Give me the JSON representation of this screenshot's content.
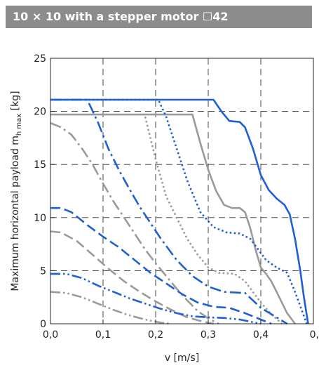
{
  "header": {
    "title": "10 × 10 with a stepper motor ☐42"
  },
  "chart_data": {
    "type": "line",
    "xlabel": "v [m/s]",
    "ylabel_main": "Maximum horizontal payload m",
    "ylabel_sub": "h max",
    "ylabel_unit": " [kg]",
    "xlim": [
      0,
      0.5
    ],
    "ylim": [
      0,
      25
    ],
    "xticks": [
      0,
      0.1,
      0.2,
      0.3,
      0.4,
      0.5
    ],
    "xtick_labels": [
      "0,0",
      "0,1",
      "0,2",
      "0,3",
      "0,4",
      "0,"
    ],
    "yticks": [
      0,
      5,
      10,
      15,
      20,
      25
    ],
    "ytick_labels": [
      "0",
      "5",
      "10",
      "15",
      "20",
      "25"
    ],
    "grid": true,
    "colors": {
      "blue": "#1f5fd6",
      "gray": "#9a9a9a"
    },
    "series": [
      {
        "color": "blue",
        "style": "solid",
        "points": [
          [
            0,
            21.1
          ],
          [
            0.31,
            21.1
          ],
          [
            0.325,
            20.0
          ],
          [
            0.34,
            19.1
          ],
          [
            0.36,
            19.0
          ],
          [
            0.37,
            18.5
          ],
          [
            0.385,
            16.5
          ],
          [
            0.4,
            14.0
          ],
          [
            0.415,
            12.6
          ],
          [
            0.43,
            11.8
          ],
          [
            0.445,
            11.2
          ],
          [
            0.455,
            10.3
          ],
          [
            0.465,
            8.0
          ],
          [
            0.475,
            5.0
          ],
          [
            0.482,
            2.5
          ],
          [
            0.49,
            0
          ]
        ]
      },
      {
        "color": "gray",
        "style": "solid",
        "points": [
          [
            0,
            19.7
          ],
          [
            0.27,
            19.7
          ],
          [
            0.285,
            17.0
          ],
          [
            0.3,
            14.5
          ],
          [
            0.315,
            12.5
          ],
          [
            0.33,
            11.2
          ],
          [
            0.345,
            10.9
          ],
          [
            0.36,
            10.9
          ],
          [
            0.37,
            10.5
          ],
          [
            0.38,
            9.0
          ],
          [
            0.39,
            7.0
          ],
          [
            0.4,
            5.3
          ],
          [
            0.41,
            4.7
          ],
          [
            0.42,
            4.0
          ],
          [
            0.435,
            2.5
          ],
          [
            0.45,
            1.0
          ],
          [
            0.465,
            0
          ]
        ]
      },
      {
        "color": "blue",
        "style": "dot",
        "points": [
          [
            0,
            21.1
          ],
          [
            0.205,
            21.1
          ],
          [
            0.22,
            19.5
          ],
          [
            0.24,
            16.5
          ],
          [
            0.26,
            13.5
          ],
          [
            0.285,
            10.5
          ],
          [
            0.31,
            9.1
          ],
          [
            0.335,
            8.6
          ],
          [
            0.36,
            8.5
          ],
          [
            0.38,
            8.0
          ],
          [
            0.395,
            7.0
          ],
          [
            0.41,
            6.0
          ],
          [
            0.43,
            5.3
          ],
          [
            0.45,
            4.8
          ],
          [
            0.465,
            3.0
          ],
          [
            0.48,
            1.0
          ],
          [
            0.487,
            0
          ]
        ]
      },
      {
        "color": "gray",
        "style": "dot",
        "points": [
          [
            0.18,
            19.5
          ],
          [
            0.2,
            15.5
          ],
          [
            0.22,
            12.0
          ],
          [
            0.24,
            10.0
          ],
          [
            0.26,
            8.0
          ],
          [
            0.28,
            6.5
          ],
          [
            0.3,
            5.3
          ],
          [
            0.32,
            4.8
          ],
          [
            0.35,
            4.7
          ],
          [
            0.37,
            4.0
          ],
          [
            0.385,
            3.0
          ],
          [
            0.4,
            2.0
          ],
          [
            0.42,
            0.9
          ],
          [
            0.44,
            0
          ]
        ]
      },
      {
        "color": "blue",
        "style": "dashdot",
        "points": [
          [
            0,
            21.1
          ],
          [
            0.07,
            21.1
          ],
          [
            0.09,
            19.0
          ],
          [
            0.11,
            16.5
          ],
          [
            0.13,
            14.5
          ],
          [
            0.15,
            12.7
          ],
          [
            0.17,
            11.0
          ],
          [
            0.19,
            9.5
          ],
          [
            0.21,
            8.0
          ],
          [
            0.24,
            6.0
          ],
          [
            0.27,
            4.5
          ],
          [
            0.3,
            3.5
          ],
          [
            0.33,
            3.0
          ],
          [
            0.37,
            2.9
          ],
          [
            0.4,
            1.5
          ],
          [
            0.43,
            0.6
          ],
          [
            0.45,
            0
          ]
        ]
      },
      {
        "color": "gray",
        "style": "dashdot",
        "points": [
          [
            0,
            18.9
          ],
          [
            0.02,
            18.5
          ],
          [
            0.04,
            17.8
          ],
          [
            0.06,
            16.5
          ],
          [
            0.08,
            15.0
          ],
          [
            0.1,
            13.2
          ],
          [
            0.12,
            11.5
          ],
          [
            0.14,
            10.0
          ],
          [
            0.16,
            8.5
          ],
          [
            0.18,
            7.0
          ],
          [
            0.2,
            5.7
          ],
          [
            0.22,
            4.5
          ],
          [
            0.24,
            3.3
          ],
          [
            0.26,
            2.2
          ],
          [
            0.28,
            1.2
          ],
          [
            0.3,
            0.5
          ],
          [
            0.32,
            0
          ]
        ]
      },
      {
        "color": "blue",
        "style": "dash",
        "points": [
          [
            0,
            10.9
          ],
          [
            0.02,
            10.9
          ],
          [
            0.04,
            10.5
          ],
          [
            0.07,
            9.3
          ],
          [
            0.1,
            8.2
          ],
          [
            0.13,
            7.2
          ],
          [
            0.16,
            6.0
          ],
          [
            0.19,
            4.8
          ],
          [
            0.22,
            3.8
          ],
          [
            0.25,
            2.8
          ],
          [
            0.28,
            2.0
          ],
          [
            0.31,
            1.6
          ],
          [
            0.34,
            1.5
          ],
          [
            0.37,
            1.0
          ],
          [
            0.4,
            0.4
          ],
          [
            0.42,
            0
          ]
        ]
      },
      {
        "color": "gray",
        "style": "dash",
        "points": [
          [
            0,
            8.7
          ],
          [
            0.02,
            8.6
          ],
          [
            0.05,
            7.8
          ],
          [
            0.08,
            6.5
          ],
          [
            0.11,
            5.2
          ],
          [
            0.14,
            4.0
          ],
          [
            0.17,
            3.0
          ],
          [
            0.2,
            2.1
          ],
          [
            0.23,
            1.3
          ],
          [
            0.26,
            0.6
          ],
          [
            0.29,
            0.2
          ],
          [
            0.31,
            0
          ]
        ]
      },
      {
        "color": "blue",
        "style": "dashdotdot",
        "points": [
          [
            0,
            4.7
          ],
          [
            0.03,
            4.7
          ],
          [
            0.06,
            4.3
          ],
          [
            0.09,
            3.6
          ],
          [
            0.12,
            3.0
          ],
          [
            0.15,
            2.4
          ],
          [
            0.18,
            1.9
          ],
          [
            0.21,
            1.4
          ],
          [
            0.24,
            1.0
          ],
          [
            0.27,
            0.7
          ],
          [
            0.3,
            0.6
          ],
          [
            0.33,
            0.55
          ],
          [
            0.36,
            0.4
          ],
          [
            0.39,
            0.1
          ],
          [
            0.4,
            0
          ]
        ]
      },
      {
        "color": "gray",
        "style": "dashdotdot",
        "points": [
          [
            0,
            3.0
          ],
          [
            0.03,
            2.9
          ],
          [
            0.06,
            2.5
          ],
          [
            0.09,
            1.9
          ],
          [
            0.12,
            1.3
          ],
          [
            0.15,
            0.8
          ],
          [
            0.18,
            0.4
          ],
          [
            0.21,
            0.1
          ],
          [
            0.23,
            0
          ]
        ]
      }
    ]
  }
}
